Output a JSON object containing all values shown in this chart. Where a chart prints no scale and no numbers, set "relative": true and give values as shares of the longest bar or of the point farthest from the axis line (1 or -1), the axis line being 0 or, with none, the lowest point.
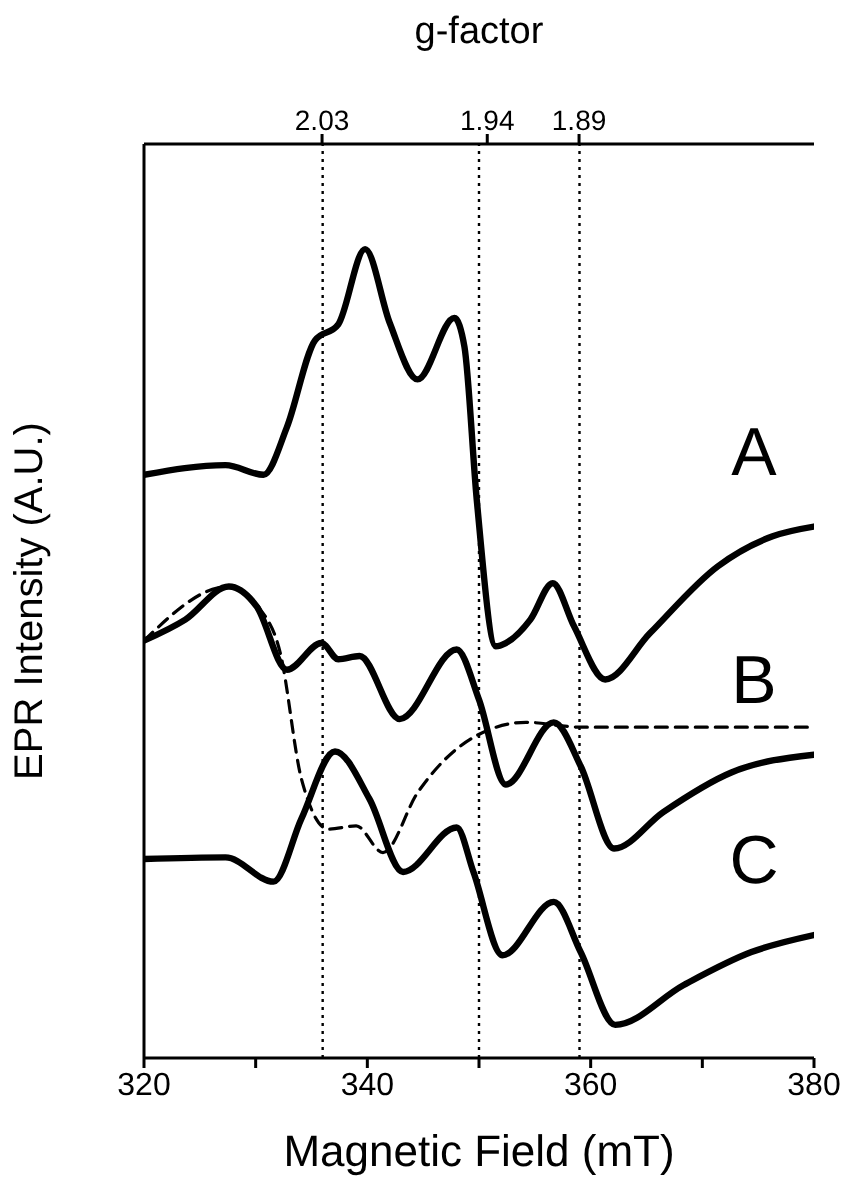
{
  "chart_data": {
    "type": "line",
    "relative": true,
    "xlabel": "Magnetic Field (mT)",
    "ylabel": "EPR Intensity (A.U.)",
    "x2label": "g-factor",
    "xlim": [
      320,
      380
    ],
    "xticks": [
      320,
      {
        "value": 330,
        "label": null
      },
      340,
      {
        "value": 350,
        "label": null
      },
      360,
      {
        "value": 370,
        "label": null
      },
      380
    ],
    "x2lim": [
      2.127,
      1.762
    ],
    "x2ticks": [
      2.03,
      1.94,
      1.89
    ],
    "ref_lines": [
      {
        "axis": "x",
        "value": 336,
        "label": null,
        "line_style": "dotted",
        "color": "#000000"
      },
      {
        "axis": "x",
        "value": 350,
        "label": null,
        "line_style": "dotted",
        "color": "#000000"
      },
      {
        "axis": "x",
        "value": 359,
        "label": null,
        "line_style": "dotted",
        "color": "#000000"
      }
    ],
    "grid": false,
    "legend": false,
    "marker": "none",
    "line_style": "solid",
    "series": [
      {
        "name": "A",
        "color": "#000000",
        "x": [
          320,
          327.3,
          330.7,
          332.8,
          335.3,
          337.4,
          339.8,
          342.0,
          344.5,
          347.8,
          348.7,
          349.8,
          351.5,
          352.4,
          354.6,
          356.6,
          358.5,
          361.3,
          365.3,
          371.4,
          376.3,
          380
        ],
        "values": [
          0.721,
          0.733,
          0.721,
          0.78,
          0.887,
          0.907,
          1.0,
          0.909,
          0.839,
          0.915,
          0.879,
          0.69,
          0.509,
          0.513,
          0.542,
          0.587,
          0.534,
          0.468,
          0.525,
          0.608,
          0.645,
          0.657
        ]
      },
      {
        "name": "B",
        "color": "#000000",
        "x": [
          320,
          323.7,
          327.6,
          330.1,
          332.8,
          335.9,
          337.4,
          339.3,
          342.9,
          348.0,
          350.0,
          352.4,
          356.7,
          359.1,
          362.1,
          366.5,
          372.6,
          380
        ],
        "values": [
          0.516,
          0.542,
          0.583,
          0.558,
          0.48,
          0.513,
          0.493,
          0.497,
          0.419,
          0.505,
          0.443,
          0.338,
          0.415,
          0.361,
          0.259,
          0.304,
          0.353,
          0.375
        ]
      },
      {
        "color": "#000000",
        "line_style": "dashed",
        "x": [
          320,
          327.6,
          330.4,
          332.2,
          334.1,
          336.5,
          339.0,
          341.4,
          344.5,
          349.7,
          354.2,
          359.1,
          380
        ],
        "values": [
          0.516,
          0.583,
          0.555,
          0.501,
          0.345,
          0.283,
          0.287,
          0.254,
          0.328,
          0.398,
          0.415,
          0.409,
          0.409
        ]
      },
      {
        "name": "C",
        "color": "#000000",
        "x": [
          320,
          327.3,
          331.6,
          334.1,
          337.1,
          340.2,
          343.2,
          348.0,
          349.5,
          352.1,
          356.7,
          359.1,
          362.2,
          368.3,
          374.4,
          380
        ],
        "values": [
          0.246,
          0.248,
          0.218,
          0.296,
          0.379,
          0.32,
          0.23,
          0.285,
          0.23,
          0.127,
          0.193,
          0.131,
          0.041,
          0.09,
          0.131,
          0.152
        ]
      }
    ]
  }
}
